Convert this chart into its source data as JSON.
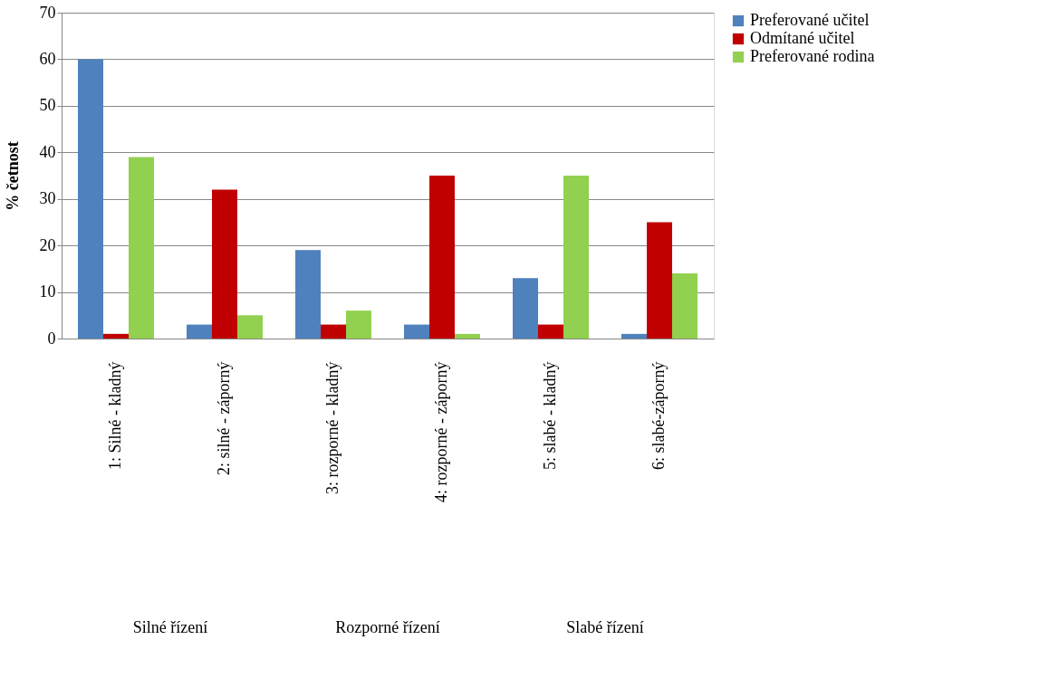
{
  "chart_data": {
    "type": "bar",
    "ylabel": "% četnost",
    "categories": [
      "1: Silné - kladný",
      "2: silné - záporný",
      "3: rozporné - kladný",
      "4: rozporné - záporný",
      "5: slabé - kladný",
      "6: slabé-záporný"
    ],
    "series": [
      {
        "name": "Preferované učitel",
        "color": "#4f81bd",
        "values": [
          60,
          3,
          19,
          3,
          13,
          1
        ]
      },
      {
        "name": "Odmítané učitel",
        "color": "#c00000",
        "values": [
          1,
          32,
          3,
          35,
          3,
          25
        ]
      },
      {
        "name": "Preferované rodina",
        "color": "#92d050",
        "values": [
          39,
          5,
          6,
          1,
          35,
          14
        ]
      }
    ],
    "annotations": [
      "Silné řízení",
      "Rozporné řízení",
      "Slabé řízení"
    ],
    "ylim": [
      0,
      70
    ],
    "yticks": [
      0,
      10,
      20,
      30,
      40,
      50,
      60,
      70
    ],
    "grid": "y",
    "legend": "right"
  }
}
